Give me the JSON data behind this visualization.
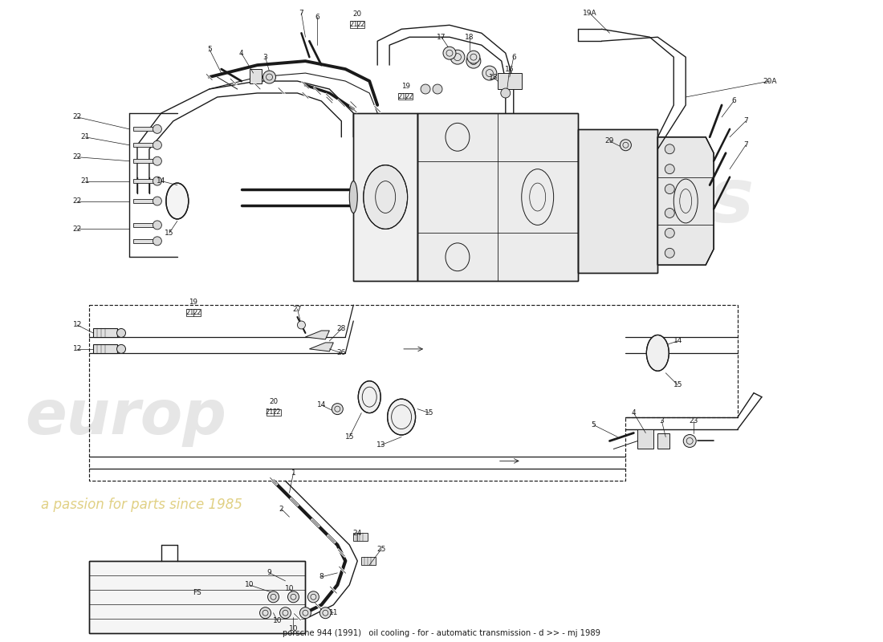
{
  "title": "porsche 944 (1991)   oil cooling - for - automatic transmission - d >> - mj 1989",
  "bg": "#ffffff",
  "lc": "#1a1a1a",
  "lw": 0.9,
  "xlim": [
    0,
    110
  ],
  "ylim": [
    0,
    80
  ],
  "wm_europ_color": "#c8c8c8",
  "wm_europ_alpha": 0.45,
  "wm_text_color": "#c8aa20",
  "wm_text_alpha": 0.55,
  "wm_es_color": "#c8c8c8",
  "wm_es_alpha": 0.35
}
